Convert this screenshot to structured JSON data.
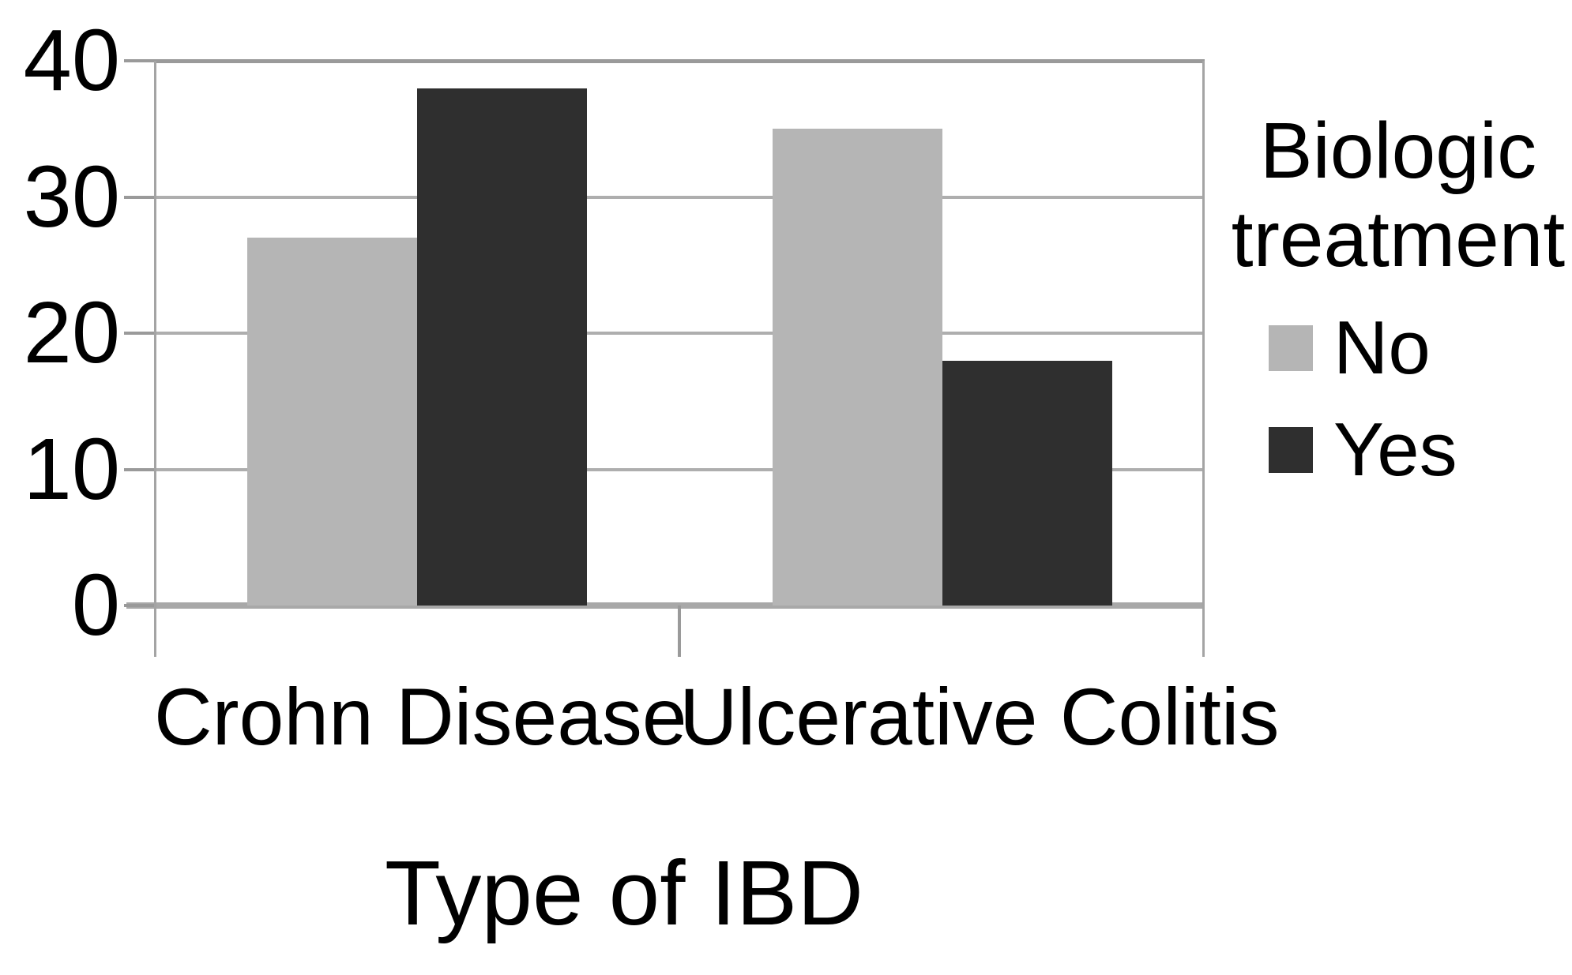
{
  "chart_data": {
    "type": "bar",
    "xlabel": "Type of IBD",
    "categories": [
      "Crohn Disease",
      "Ulcerative Colitis"
    ],
    "series": [
      {
        "name": "No",
        "color": "#b5b5b5",
        "values": [
          27,
          35
        ]
      },
      {
        "name": "Yes",
        "color": "#2f2f2f",
        "values": [
          38,
          18
        ]
      }
    ],
    "ylim": [
      0,
      40
    ],
    "yticks": [
      0,
      10,
      20,
      30,
      40
    ],
    "grid": true,
    "legend": {
      "title": "Biologic treatment",
      "position": "right",
      "entries": [
        "No",
        "Yes"
      ]
    }
  },
  "colors": {
    "background": "#ffffff",
    "gridline": "#aeaeae",
    "axis": "#9a9a9a",
    "text": "#000000"
  }
}
